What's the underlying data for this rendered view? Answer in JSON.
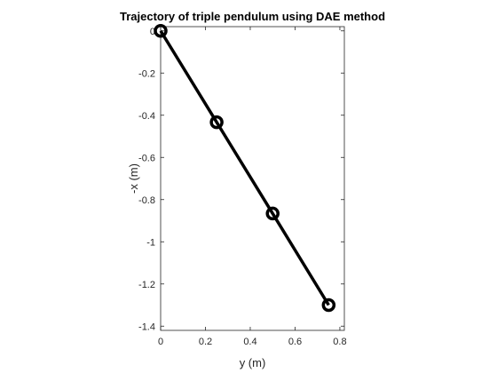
{
  "chart_data": {
    "type": "line",
    "title": "Trajectory of triple pendulum using DAE method",
    "xlabel": "y (m)",
    "ylabel": "-x (m)",
    "xlim": [
      0,
      0.82
    ],
    "ylim": [
      -1.42,
      0.02
    ],
    "xticks": [
      0,
      0.2,
      0.4,
      0.6,
      0.8
    ],
    "xtick_labels": [
      "0",
      "0.2",
      "0.4",
      "0.6",
      "0.8"
    ],
    "yticks": [
      0,
      -0.2,
      -0.4,
      -0.6,
      -0.8,
      -1,
      -1.2,
      -1.4
    ],
    "ytick_labels": [
      "0",
      "-0.2",
      "-0.4",
      "-0.6",
      "-0.8",
      "-1",
      "-1.2",
      "-1.4"
    ],
    "grid": false,
    "series": [
      {
        "x": [
          0,
          0.25,
          0.5,
          0.75
        ],
        "y": [
          0,
          -0.433,
          -0.866,
          -1.3
        ],
        "marker": "circle",
        "color": "#000000"
      }
    ]
  }
}
